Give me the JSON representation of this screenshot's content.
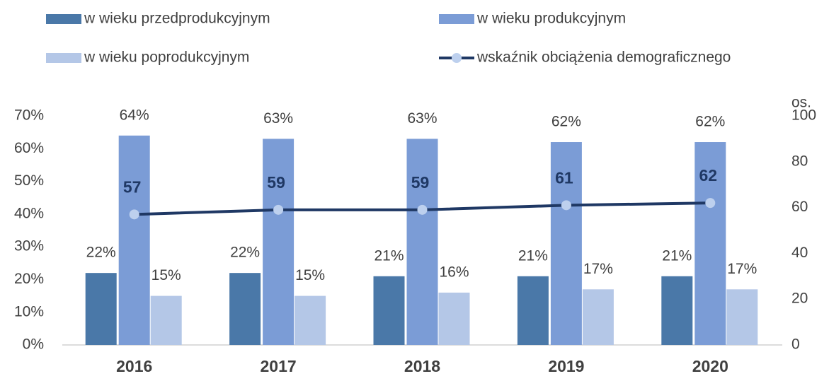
{
  "chart_data": {
    "type": "bar",
    "categories": [
      "2016",
      "2017",
      "2018",
      "2019",
      "2020"
    ],
    "series": [
      {
        "name": "w wieku przedprodukcyjnym",
        "color": "#4a78a8",
        "values": [
          22,
          22,
          21,
          21,
          21
        ],
        "value_labels": [
          "22%",
          "22%",
          "21%",
          "21%",
          "21%"
        ]
      },
      {
        "name": "w wieku produkcyjnym",
        "color": "#7b9cd6",
        "values": [
          64,
          63,
          63,
          62,
          62
        ],
        "value_labels": [
          "64%",
          "63%",
          "63%",
          "62%",
          "62%"
        ]
      },
      {
        "name": "w wieku poprodukcyjnym",
        "color": "#b4c7e7",
        "values": [
          15,
          15,
          16,
          17,
          17
        ],
        "value_labels": [
          "15%",
          "15%",
          "16%",
          "17%",
          "17%"
        ]
      },
      {
        "name": "wskaźnik obciążenia demograficznego",
        "color": "#1f3864",
        "type": "line",
        "axis": "y2",
        "values": [
          57,
          59,
          59,
          61,
          62
        ]
      }
    ],
    "ylim": [
      0,
      70
    ],
    "yticks": [
      {
        "value": 0,
        "label": "0%"
      },
      {
        "value": 10,
        "label": "10%"
      },
      {
        "value": 20,
        "label": "20%"
      },
      {
        "value": 30,
        "label": "30%"
      },
      {
        "value": 40,
        "label": "40%"
      },
      {
        "value": 50,
        "label": "50%"
      },
      {
        "value": 60,
        "label": "60%"
      },
      {
        "value": 70,
        "label": "70%"
      }
    ],
    "y2lim": [
      0,
      100
    ],
    "y2ticks": [
      0,
      20,
      40,
      60,
      80,
      100
    ],
    "y2label": "os.",
    "grid": false
  }
}
